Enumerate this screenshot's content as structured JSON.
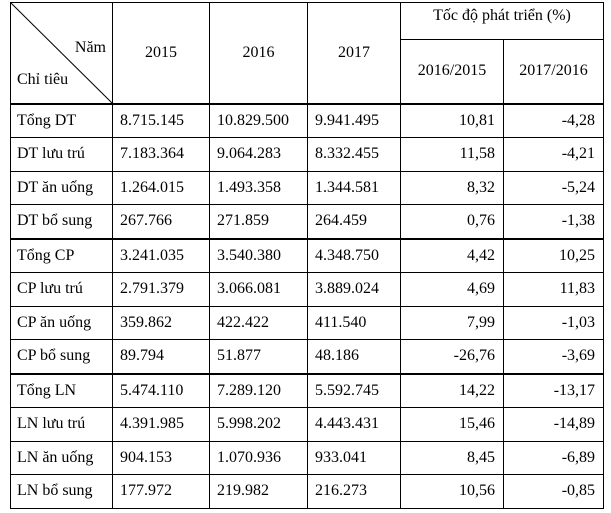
{
  "header": {
    "corner_top": "Năm",
    "corner_bottom": "Chỉ tiêu",
    "years": [
      "2015",
      "2016",
      "2017"
    ],
    "growth_title": "Tốc độ phát triển (%)",
    "growth_columns": [
      "2016/2015",
      "2017/2016"
    ]
  },
  "table": {
    "groups": [
      [
        [
          "Tổng DT",
          "8.715.145",
          "10.829.500",
          "9.941.495",
          "10,81",
          "-4,28"
        ],
        [
          "DT lưu trú",
          "7.183.364",
          "9.064.283",
          "8.332.455",
          "11,58",
          "-4,21"
        ],
        [
          "DT ăn uống",
          "1.264.015",
          "1.493.358",
          "1.344.581",
          "8,32",
          "-5,24"
        ],
        [
          "DT bổ sung",
          "267.766",
          "271.859",
          "264.459",
          "0,76",
          "-1,38"
        ]
      ],
      [
        [
          "Tổng CP",
          "3.241.035",
          "3.540.380",
          "4.348.750",
          "4,42",
          "10,25"
        ],
        [
          "CP lưu trú",
          "2.791.379",
          "3.066.081",
          "3.889.024",
          "4,69",
          "11,83"
        ],
        [
          "CP ăn uống",
          "359.862",
          "422.422",
          "411.540",
          "7,99",
          "-1,03"
        ],
        [
          "CP bổ sung",
          "89.794",
          "51.877",
          "48.186",
          "-26,76",
          "-3,69"
        ]
      ],
      [
        [
          "Tổng LN",
          "5.474.110",
          "7.289.120",
          "5.592.745",
          "14,22",
          "-13,17"
        ],
        [
          "LN lưu trú",
          "4.391.985",
          "5.998.202",
          "4.443.431",
          "15,46",
          "-14,89"
        ],
        [
          "LN ăn uống",
          "904.153",
          "1.070.936",
          "933.041",
          "8,45",
          "-6,89"
        ],
        [
          "LN bổ sung",
          "177.972",
          "219.982",
          "216.273",
          "10,56",
          "-0,85"
        ]
      ]
    ]
  }
}
